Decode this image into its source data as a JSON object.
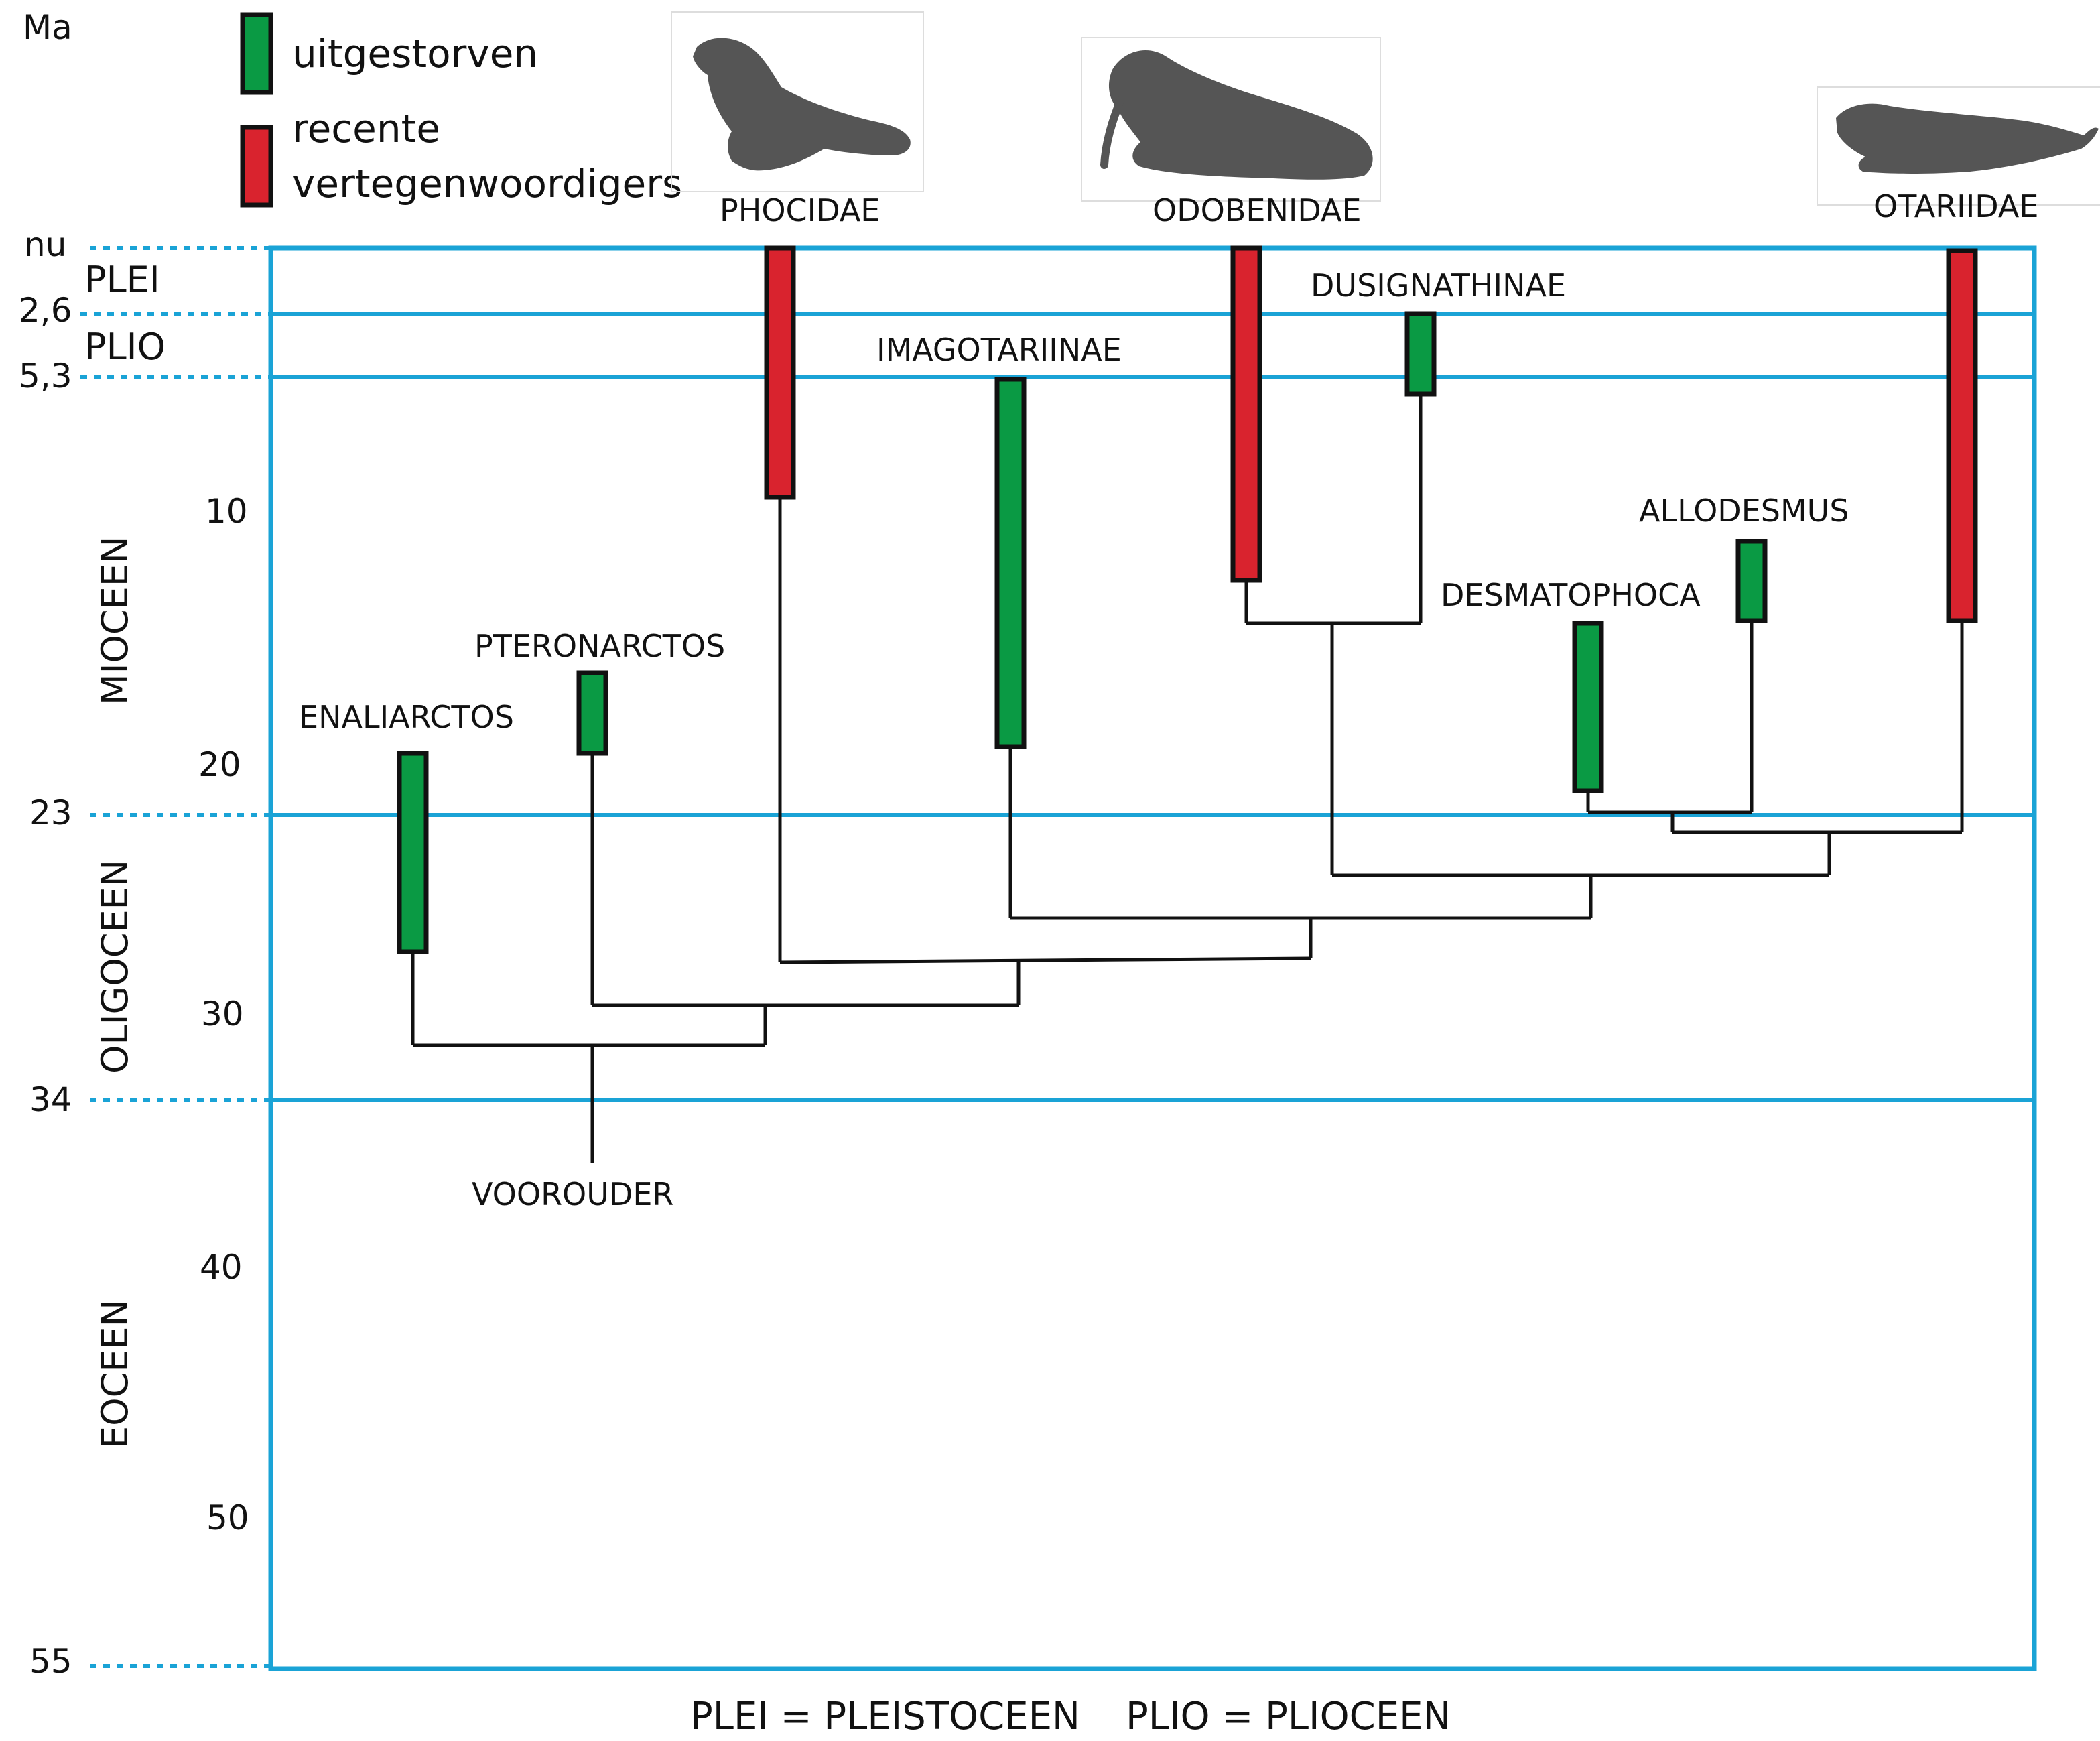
{
  "colors": {
    "extinct": "#0a9a44",
    "recent": "#d9232e",
    "grid": "#1aa3d6",
    "silhouette": "#555555"
  },
  "legend": {
    "extinct_label": "uitgestorven",
    "recent_label_line1": "recente",
    "recent_label_line2": "vertegenwoordigers"
  },
  "axis": {
    "unit": "Ma",
    "ticks": {
      "nu": "nu",
      "t26": "2,6",
      "t53": "5,3",
      "t10": "10",
      "t20": "20",
      "t23": "23",
      "t30": "30",
      "t34": "34",
      "t40": "40",
      "t50": "50",
      "t55": "55"
    }
  },
  "epochs": {
    "plei": "PLEI",
    "plio": "PLIO",
    "mioceen": "MIOCEEN",
    "oligoceen": "OLIGOCEEN",
    "eoceen": "EOCEEN"
  },
  "silhouettes": {
    "left": "sea-lion-silhouette",
    "middle": "walrus-silhouette",
    "right": "seal-silhouette"
  },
  "families": {
    "phocidae": "PHOCIDAE",
    "odobenidae": "ODOBENIDAE",
    "otariidae": "OTARIIDAE"
  },
  "taxa": {
    "imagotariinae": "IMAGOTARIINAE",
    "dusignathinae": "DUSIGNATHINAE",
    "allodesmus": "ALLODESMUS",
    "desmatophoca": "DESMATOPHOCA",
    "pteronarctos": "PTERONARCTOS",
    "enaliarctos": "ENALIARCTOS",
    "voorouder": "VOOROUDER"
  },
  "footnote": {
    "plei": "PLEI = PLEISTOCEEN",
    "plio": "PLIO = PLIOCEEN"
  }
}
